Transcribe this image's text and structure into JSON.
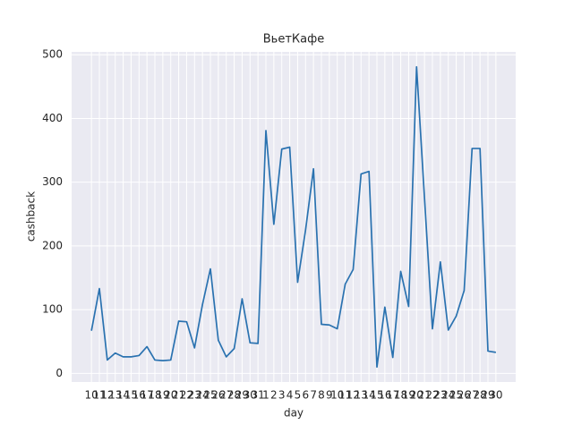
{
  "chart_data": {
    "type": "line",
    "title": "ВьетКафе",
    "x_label": "day",
    "y_label": "cashback",
    "categories": [
      "10",
      "11",
      "12",
      "13",
      "14",
      "15",
      "16",
      "17",
      "18",
      "19",
      "20",
      "21",
      "22",
      "23",
      "24",
      "25",
      "26",
      "27",
      "28",
      "29",
      "30",
      "31",
      "1",
      "2",
      "3",
      "4",
      "5",
      "6",
      "7",
      "8",
      "9",
      "10",
      "11",
      "12",
      "13",
      "14",
      "15",
      "16",
      "17",
      "18",
      "19",
      "20",
      "21",
      "22",
      "23",
      "24",
      "25",
      "26",
      "27",
      "28",
      "29",
      "30"
    ],
    "series": [
      {
        "name": "cashback",
        "color": "#2a72b0",
        "values": [
          67,
          133,
          21,
          32,
          26,
          26,
          28,
          42,
          21,
          20,
          21,
          82,
          81,
          40,
          108,
          164,
          52,
          26,
          39,
          117,
          48,
          47,
          381,
          234,
          352,
          355,
          143,
          225,
          321,
          77,
          76,
          70,
          140,
          163,
          313,
          317,
          10,
          104,
          25,
          160,
          105,
          481,
          275,
          70,
          175,
          68,
          90,
          130,
          353,
          353,
          35,
          33
        ]
      }
    ],
    "ylim": [
      -13.5,
      504.5
    ],
    "yticks": [
      0,
      100,
      200,
      300,
      400,
      500
    ],
    "grid": true
  }
}
